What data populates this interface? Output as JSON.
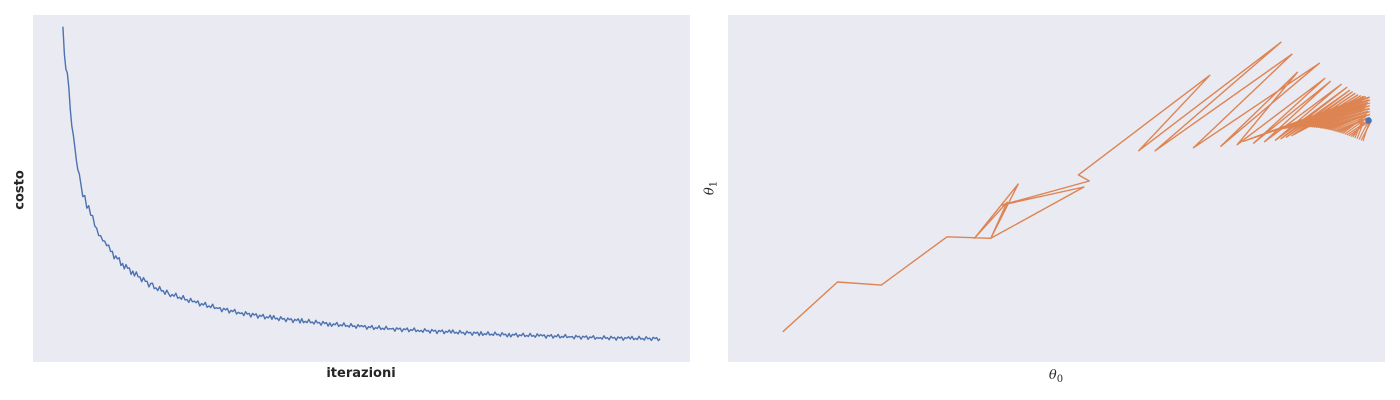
{
  "colors": {
    "panel_background": "#eaeaf2",
    "cost_line": "#4c72b0",
    "trajectory_line": "#dd8452",
    "final_point": "#4c72b0"
  },
  "chart_data": [
    {
      "type": "line",
      "title": "",
      "xlabel": "iterazioni",
      "ylabel": "costo",
      "grid": false,
      "x_ticks_shown": false,
      "y_ticks_shown": false,
      "xlim": [
        -50,
        1050
      ],
      "ylim": [
        -0.05,
        1.05
      ],
      "series": [
        {
          "x": [
            0,
            5,
            10,
            15,
            20,
            25,
            30,
            40,
            50,
            60,
            70,
            80,
            100,
            120,
            150,
            180,
            220,
            260,
            300,
            350,
            400,
            450,
            500,
            550,
            600,
            650,
            700,
            750,
            800,
            850,
            900,
            950,
            1000
          ],
          "values": [
            1.0,
            0.9,
            0.8,
            0.71,
            0.63,
            0.56,
            0.51,
            0.45,
            0.4,
            0.36,
            0.33,
            0.3,
            0.26,
            0.23,
            0.19,
            0.165,
            0.14,
            0.12,
            0.105,
            0.09,
            0.08,
            0.07,
            0.062,
            0.055,
            0.05,
            0.045,
            0.04,
            0.036,
            0.033,
            0.03,
            0.027,
            0.025,
            0.024
          ]
        }
      ]
    },
    {
      "type": "line",
      "title": "",
      "xlabel": "θ0",
      "ylabel": "θ1",
      "grid": false,
      "x_ticks_shown": false,
      "y_ticks_shown": false,
      "xlim": [
        -1,
        11
      ],
      "ylim": [
        -1,
        10.5
      ],
      "series": [
        {
          "x": [
            0.0,
            1.0,
            1.8,
            3.0,
            3.8,
            4.3,
            3.5,
            4.1,
            3.8,
            5.5,
            4.0,
            5.6,
            5.4,
            7.8,
            6.5,
            9.1,
            6.8,
            9.3,
            7.5,
            9.8,
            8.0,
            9.4,
            8.3,
            9.9,
            8.6,
            10.0,
            8.8,
            10.2,
            9.0,
            10.3,
            9.1,
            10.35,
            9.2,
            10.4,
            9.3,
            10.45,
            9.35,
            10.5,
            9.4,
            10.55,
            9.45,
            10.6,
            9.5,
            10.62
          ],
          "values": [
            0.0,
            1.65,
            1.55,
            3.15,
            3.1,
            4.9,
            3.1,
            4.3,
            3.1,
            4.8,
            4.2,
            5.0,
            5.2,
            8.5,
            6.0,
            9.6,
            6.0,
            9.2,
            6.1,
            8.9,
            6.15,
            8.6,
            6.2,
            8.4,
            6.25,
            8.3,
            6.3,
            8.2,
            6.35,
            8.1,
            6.4,
            8.0,
            6.45,
            7.95,
            6.5,
            7.9,
            6.55,
            7.85,
            6.6,
            7.82,
            6.65,
            7.8,
            6.7,
            7.78
          ]
        }
      ],
      "final_point": {
        "x": 10.7,
        "y": 7.0
      }
    }
  ]
}
